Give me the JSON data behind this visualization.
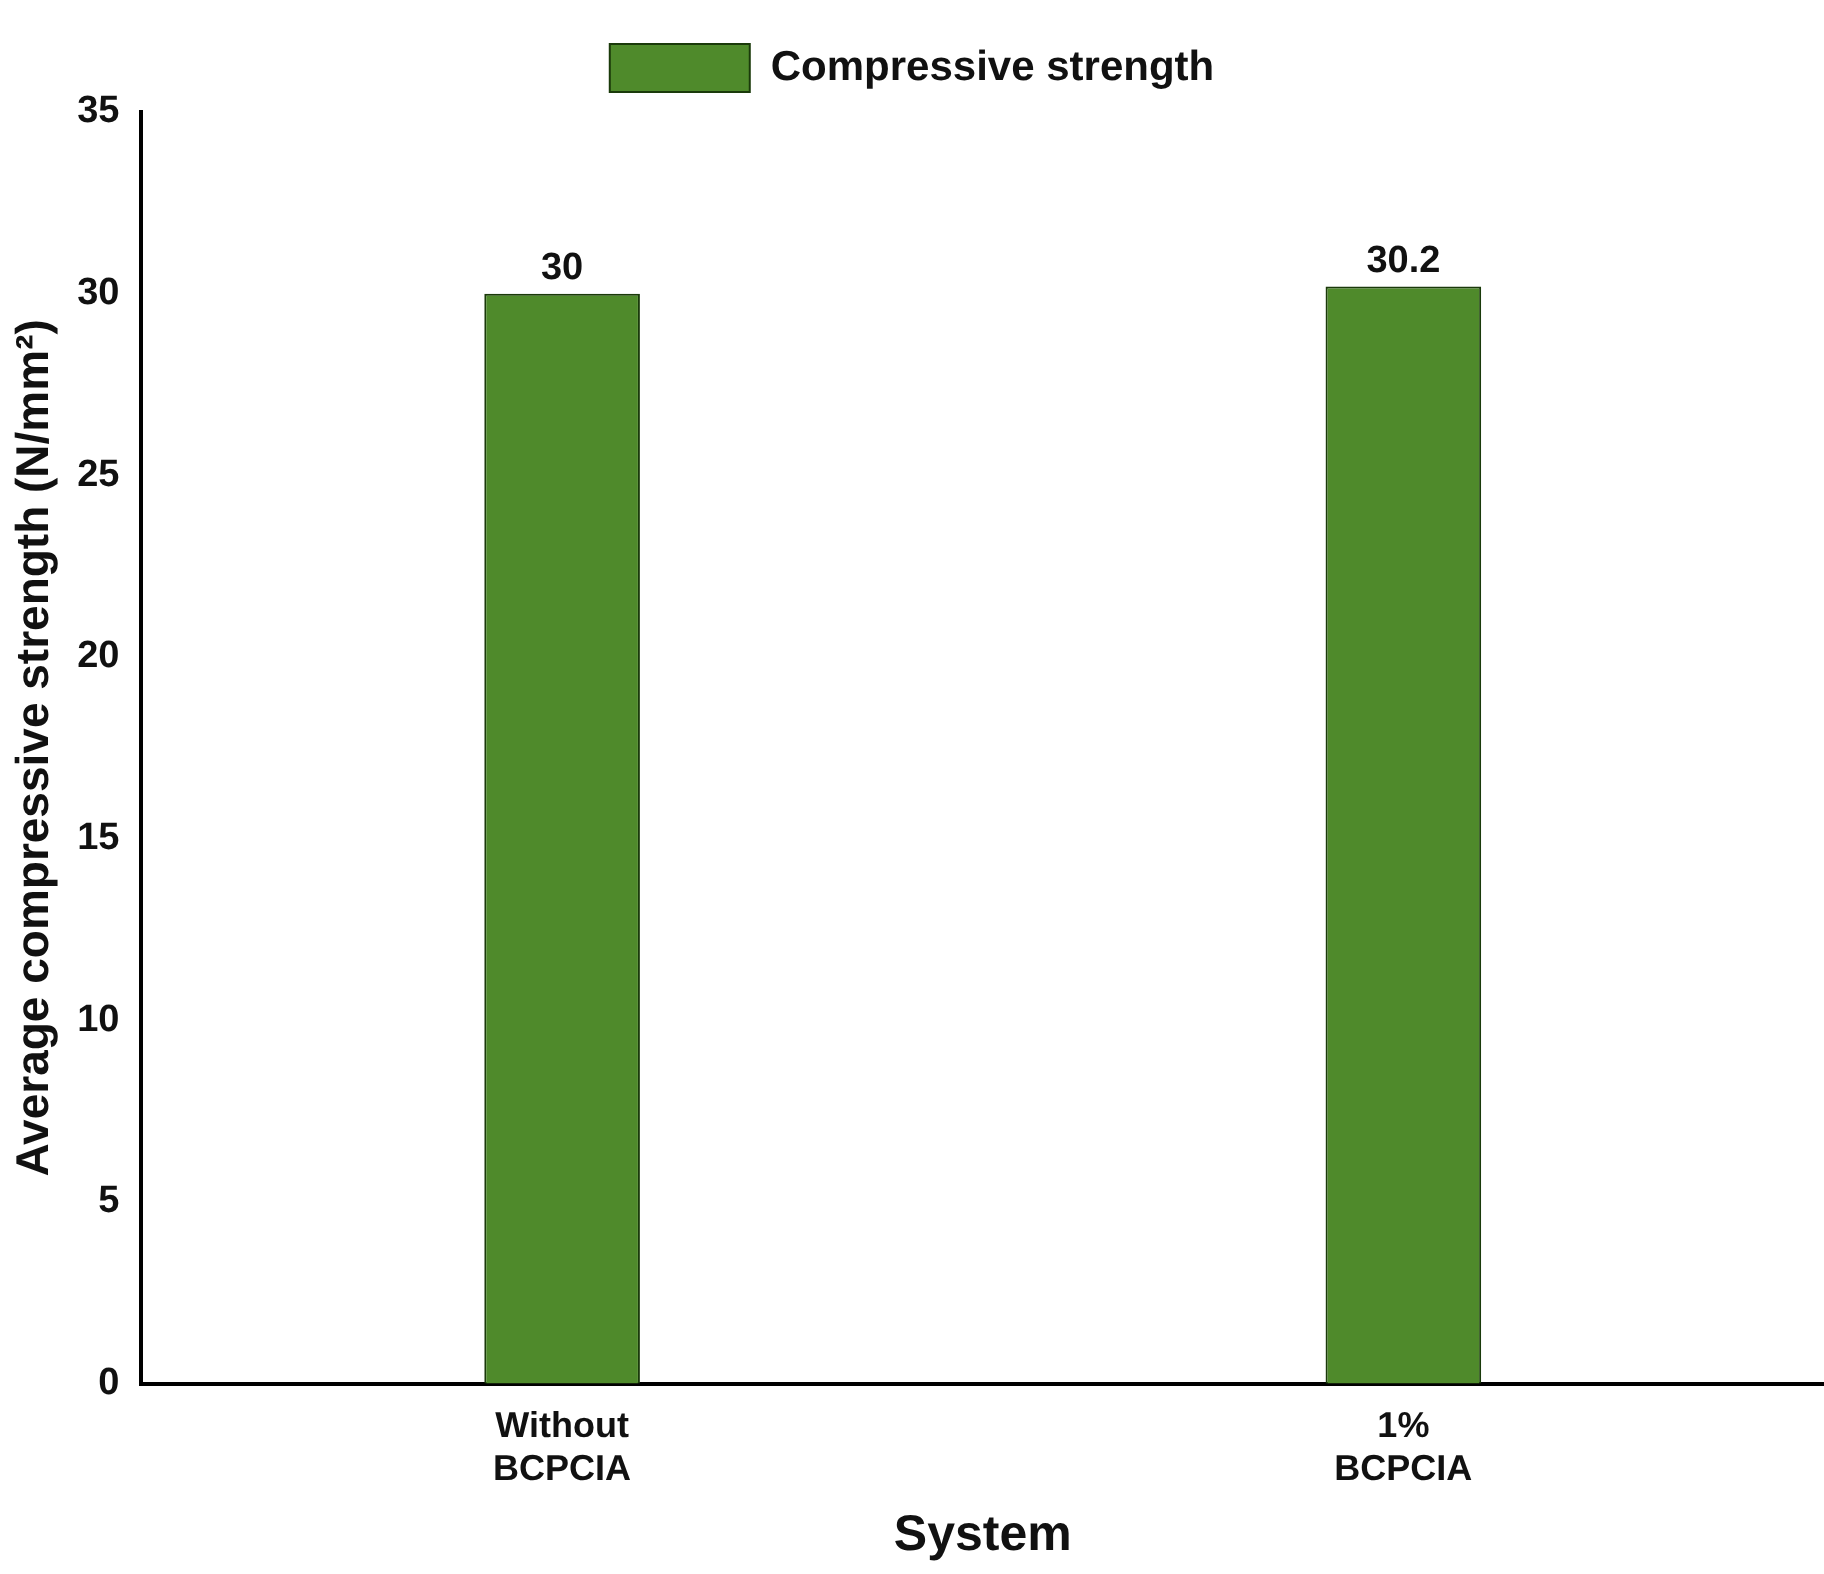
{
  "chart_data": {
    "type": "bar",
    "xlabel": "System",
    "ylabel": "Average compressive strength (N/mm²)",
    "categories": [
      "Without BCPCIA",
      "1% BCPCIA"
    ],
    "series": [
      {
        "name": "Compressive strength",
        "color": "#4f8a2b",
        "values": [
          30,
          30.2
        ]
      }
    ],
    "ylim": [
      0,
      35
    ],
    "yticks": [
      0,
      5,
      10,
      15,
      20,
      25,
      30,
      35
    ],
    "grid": false,
    "legend": "top",
    "data_labels": true
  }
}
